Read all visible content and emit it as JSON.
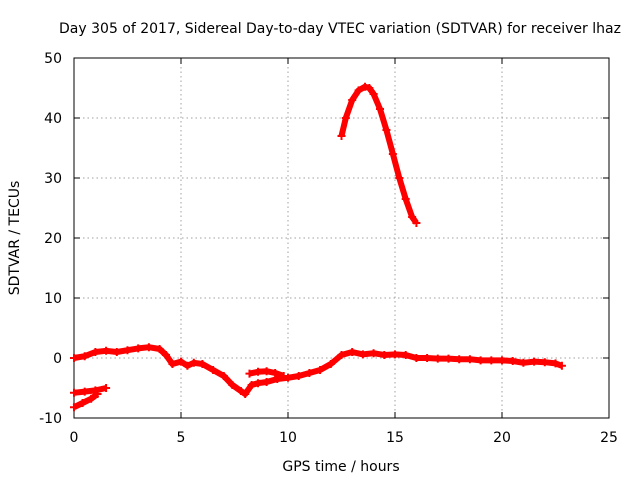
{
  "chart_data": {
    "type": "line",
    "title": "Day 305 of 2017, Sidereal Day-to-day VTEC variation (SDTVAR) for receiver lhaz",
    "xlabel": "GPS time / hours",
    "ylabel": "SDTVAR / TECUs",
    "xlim": [
      0,
      25
    ],
    "ylim": [
      -10,
      50
    ],
    "xticks": [
      0,
      5,
      10,
      15,
      20,
      25
    ],
    "yticks": [
      -10,
      0,
      10,
      20,
      30,
      40,
      50
    ],
    "grid": true,
    "colors": {
      "series": "#ff0000",
      "grid": "#a0a0a0",
      "axes": "#000000"
    },
    "series": [
      {
        "name": "main",
        "x": [
          0,
          0.5,
          1.0,
          1.5,
          2.0,
          2.5,
          3.0,
          3.5,
          4.0,
          4.3,
          4.6,
          5.0,
          5.3,
          5.6,
          6.0,
          6.5,
          7.0,
          7.4,
          7.8,
          8.0,
          8.3,
          8.6,
          9.0,
          9.5,
          10.0,
          10.5,
          11.0,
          11.5,
          12.0,
          12.5,
          13.0,
          13.5,
          14.0,
          14.5,
          15.0,
          15.5,
          16.0,
          16.5,
          17.0,
          17.5,
          18.0,
          18.5,
          19.0,
          19.5,
          20.0,
          20.5,
          21.0,
          21.5,
          22.0,
          22.5,
          22.8
        ],
        "y": [
          0.0,
          0.3,
          1.0,
          1.2,
          1.0,
          1.3,
          1.6,
          1.8,
          1.5,
          0.5,
          -1.0,
          -0.6,
          -1.3,
          -0.8,
          -1.0,
          -2.0,
          -3.0,
          -4.5,
          -5.5,
          -6.0,
          -4.5,
          -4.2,
          -4.0,
          -3.5,
          -3.3,
          -3.0,
          -2.5,
          -2.0,
          -1.0,
          0.5,
          1.0,
          0.6,
          0.8,
          0.5,
          0.6,
          0.5,
          0.0,
          0.0,
          -0.1,
          -0.1,
          -0.2,
          -0.2,
          -0.4,
          -0.4,
          -0.4,
          -0.5,
          -0.8,
          -0.6,
          -0.7,
          -0.9,
          -1.3
        ]
      },
      {
        "name": "early-low",
        "x": [
          0,
          0.5,
          1.0,
          1.5
        ],
        "y": [
          -5.8,
          -5.6,
          -5.4,
          -5.0
        ]
      },
      {
        "name": "early-ramp",
        "x": [
          0,
          0.4,
          0.8,
          1.1
        ],
        "y": [
          -8.2,
          -7.5,
          -6.8,
          -6.0
        ]
      },
      {
        "name": "bump",
        "x": [
          8.2,
          8.6,
          9.0,
          9.4,
          9.8
        ],
        "y": [
          -2.6,
          -2.3,
          -2.2,
          -2.5,
          -3.0
        ]
      },
      {
        "name": "arc",
        "x": [
          12.5,
          12.7,
          13.0,
          13.3,
          13.6,
          13.8,
          14.0,
          14.3,
          14.6,
          14.9,
          15.2,
          15.5,
          15.8,
          16.0
        ],
        "y": [
          37.0,
          40.0,
          43.0,
          44.6,
          45.2,
          45.0,
          44.0,
          41.5,
          38.0,
          34.0,
          30.0,
          26.5,
          23.5,
          22.5
        ]
      }
    ]
  }
}
